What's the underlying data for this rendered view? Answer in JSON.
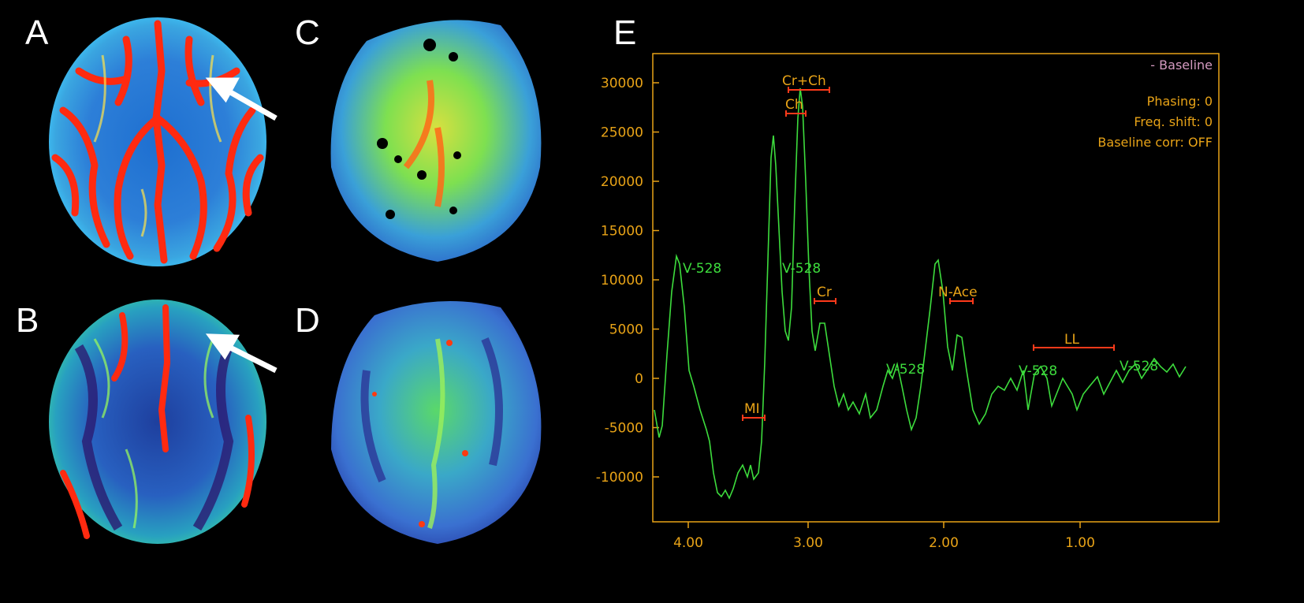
{
  "panels": {
    "A": "A",
    "B": "B",
    "C": "C",
    "D": "D",
    "E": "E"
  },
  "spectrum": {
    "legend": "- Baseline",
    "info": {
      "phasing": "Phasing: 0",
      "freq_shift": "Freq. shift: 0",
      "baseline_corr": "Baseline corr: OFF"
    },
    "y_ticks": [
      "30000",
      "25000",
      "20000",
      "15000",
      "10000",
      "5000",
      "0",
      "-5000",
      "-10000"
    ],
    "x_ticks": [
      "4.00",
      "3.00",
      "2.00",
      "1.00"
    ],
    "peak_labels": {
      "crch": "Cr+Ch",
      "ch": "Ch",
      "cr": "Cr",
      "nace": "N-Ace",
      "ll": "LL",
      "mi": "MI"
    },
    "voxel_labels": [
      "V-528",
      "V-528",
      "V-528",
      "V-528",
      "V-528"
    ],
    "colors": {
      "axis": "#e8a317",
      "trace": "#3ddc3d",
      "marker": "#ff3a1a",
      "legend": "#d49ac0"
    }
  }
}
